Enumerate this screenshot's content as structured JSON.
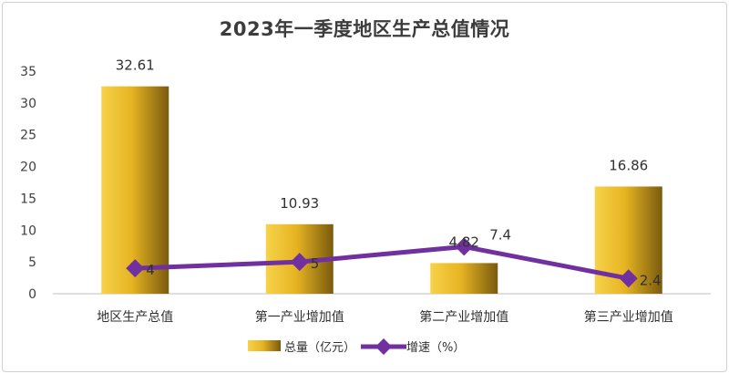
{
  "chart_data": {
    "type": "bar",
    "title": "2023年一季度地区生产总值情况",
    "categories": [
      "地区生产总值",
      "第一产业增加值",
      "第二产业增加值",
      "第三产业增加值"
    ],
    "ylim": [
      0,
      35
    ],
    "yticks": [
      0,
      5,
      10,
      15,
      20,
      25,
      30,
      35
    ],
    "grid": false,
    "legend_position": "bottom",
    "series": [
      {
        "name": "总量（亿元）",
        "type": "bar",
        "values": [
          32.61,
          10.93,
          4.82,
          16.86
        ],
        "labels": [
          "32.61",
          "10.93",
          "4.82",
          "16.86"
        ],
        "color": "#e6b422"
      },
      {
        "name": "增速（%）",
        "type": "line",
        "values": [
          4,
          5,
          7.4,
          2.4
        ],
        "labels": [
          "4",
          "5",
          "7.4",
          "2.4"
        ],
        "color": "#7030a0"
      }
    ]
  }
}
